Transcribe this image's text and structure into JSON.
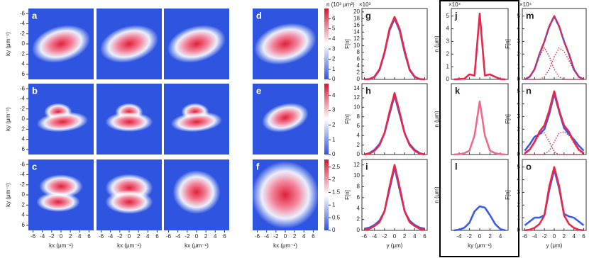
{
  "heatmaps": {
    "panels": [
      "a",
      "b",
      "c",
      "d",
      "e",
      "f"
    ],
    "lim": [
      -7,
      7
    ],
    "ticks": [
      -6,
      -4,
      -2,
      0,
      2,
      4,
      6
    ],
    "x_label": "kx (μm⁻¹)",
    "y_label": "ky (μm⁻¹)",
    "colorbar_label": "n (10³ μm²)",
    "colorbars": [
      {
        "lim": [
          0,
          7
        ],
        "ticks": [
          0,
          1,
          2,
          3,
          4,
          5,
          6
        ]
      },
      {
        "lim": [
          0,
          4.8
        ],
        "ticks": [
          0,
          1,
          2,
          3,
          4
        ]
      },
      {
        "lim": [
          0,
          2.8
        ],
        "ticks": [
          0,
          0.5,
          1,
          1.5,
          2,
          2.5
        ]
      }
    ]
  },
  "profiles": {
    "columns": [
      {
        "multiplier": "×10³",
        "x_label": "y (μm)",
        "y_label": "F[n]",
        "xlim": [
          -6.5,
          6.5
        ],
        "xticks": [
          -6,
          -4,
          -2,
          0,
          2,
          4,
          6
        ],
        "x": [
          -6,
          -5,
          -4,
          -3,
          -2,
          -1,
          0,
          1,
          2,
          3,
          4,
          5,
          6
        ],
        "panels": [
          {
            "label": "g",
            "ylim": [
              0,
              21
            ],
            "yticks": [
              0,
              2,
              4,
              6,
              8,
              10,
              12,
              14,
              16,
              18,
              20
            ],
            "series": [
              {
                "color": "#3a5ce6",
                "values": [
                  0,
                  0.1,
                  0.7,
                  2.8,
                  7.8,
                  14.5,
                  18,
                  14.5,
                  8,
                  2.8,
                  0.7,
                  0.1,
                  0
                ]
              },
              {
                "color": "#e8274b",
                "values": [
                  0,
                  0.1,
                  0.8,
                  3,
                  8,
                  15,
                  18.5,
                  15,
                  8.5,
                  3,
                  0.8,
                  0.1,
                  0
                ]
              }
            ]
          },
          {
            "label": "h",
            "ylim": [
              0,
              15
            ],
            "yticks": [
              0,
              2,
              4,
              6,
              8,
              10,
              12,
              14
            ],
            "series": [
              {
                "color": "#3a5ce6",
                "values": [
                  0,
                  0.3,
                  1,
                  2.2,
                  4.5,
                  8.5,
                  12.5,
                  8.5,
                  4.5,
                  2.2,
                  1,
                  0.3,
                  0
                ]
              },
              {
                "color": "#e8274b",
                "values": [
                  0,
                  0.2,
                  0.8,
                  2,
                  4.5,
                  9,
                  13,
                  9,
                  4.5,
                  2,
                  0.8,
                  0.2,
                  0
                ]
              }
            ]
          },
          {
            "label": "i",
            "ylim": [
              0,
              13
            ],
            "yticks": [
              0,
              2,
              4,
              6,
              8,
              10,
              12
            ],
            "series": [
              {
                "color": "#3a5ce6",
                "values": [
                  0.3,
                  0.5,
                  1,
                  1.8,
                  3.5,
                  7.5,
                  11.5,
                  7.5,
                  3.5,
                  1.8,
                  1,
                  0.5,
                  0.3
                ]
              },
              {
                "color": "#e8274b",
                "values": [
                  0.1,
                  0.3,
                  0.8,
                  1.5,
                  3.5,
                  8,
                  12,
                  8,
                  3.5,
                  1.5,
                  0.8,
                  0.3,
                  0.1
                ]
              }
            ]
          }
        ]
      },
      {
        "multiplier": "×10⁴",
        "x_label": "ky (μm⁻¹)",
        "y_label": "n (μm)",
        "xlim": [
          -5.5,
          5.5
        ],
        "xticks": [
          -4,
          -2,
          0,
          2,
          4
        ],
        "x": [
          -5,
          -4,
          -3,
          -2,
          -1,
          0,
          1,
          2,
          3,
          4,
          5
        ],
        "panels": [
          {
            "label": "j",
            "ylim": [
              0,
              5.6
            ],
            "yticks": [
              0,
              1,
              2,
              3,
              4,
              5
            ],
            "series": [
              {
                "color": "#e8274b",
                "values": [
                  0,
                  0.02,
                  0.05,
                  0.4,
                  0.3,
                  5.2,
                  0.3,
                  0.4,
                  0.2,
                  0.02,
                  0
                ]
              }
            ]
          },
          {
            "label": "k",
            "ylim": [
              0,
              5.6
            ],
            "series": [
              {
                "color": "#f06a8a",
                "values": [
                  0,
                  0.02,
                  0.1,
                  0.3,
                  1.5,
                  4.2,
                  1.5,
                  0.3,
                  0.1,
                  0.02,
                  0
                ]
              }
            ]
          },
          {
            "label": "l",
            "ylim": [
              0,
              5.6
            ],
            "series": [
              {
                "color": "#3a5ce6",
                "values": [
                  0,
                  0.05,
                  0.2,
                  0.6,
                  1.5,
                  1.9,
                  1.8,
                  1.2,
                  0.5,
                  0.1,
                  0
                ]
              }
            ]
          }
        ]
      },
      {
        "multiplier": "×10⁴",
        "x_label": "y (μm)",
        "y_label": "F[n]",
        "xlim": [
          -6.5,
          6.5
        ],
        "xticks": [
          -6,
          -4,
          -2,
          0,
          2,
          4,
          6
        ],
        "x": [
          -6,
          -5,
          -4,
          -3,
          -2,
          -1,
          0,
          1,
          2,
          3,
          4,
          5,
          6
        ],
        "panels": [
          {
            "label": "m",
            "ylim": [
              0,
              5.6
            ],
            "yticks": [
              0,
              1,
              2,
              3,
              4,
              5
            ],
            "series": [
              {
                "color": "#e8274b",
                "style": "dotted",
                "values": [
                  0,
                  0.2,
                  0.8,
                  1.8,
                  2.5,
                  1.8,
                  0.8,
                  0.2,
                  0,
                  0,
                  0,
                  0,
                  0
                ]
              },
              {
                "color": "#e8274b",
                "style": "dotted",
                "values": [
                  0,
                  0,
                  0,
                  0,
                  0.2,
                  0.8,
                  1.8,
                  2.5,
                  2.2,
                  1.5,
                  0.7,
                  0.2,
                  0
                ]
              },
              {
                "color": "#e8274b",
                "values": [
                  0,
                  0.2,
                  0.8,
                  2,
                  3,
                  4.2,
                  5,
                  4.2,
                  3,
                  2,
                  0.8,
                  0.2,
                  0
                ]
              },
              {
                "color": "#3a5ce6",
                "style": "dashed",
                "values": [
                  0,
                  0.2,
                  0.8,
                  2,
                  3,
                  4.1,
                  4.9,
                  4.1,
                  3,
                  2,
                  0.8,
                  0.2,
                  0
                ]
              }
            ]
          },
          {
            "label": "n",
            "ylim": [
              0,
              5.6
            ],
            "yticks": [
              0,
              1,
              2,
              3,
              4,
              5
            ],
            "series": [
              {
                "color": "#e8274b",
                "style": "dotted",
                "values": [
                  0,
                  0.3,
                  0.9,
                  1.6,
                  1.7,
                  1,
                  0.2,
                  0,
                  0,
                  0,
                  0,
                  0,
                  0
                ]
              },
              {
                "color": "#e8274b",
                "style": "dotted",
                "values": [
                  0,
                  0,
                  0,
                  0,
                  0,
                  0.3,
                  1,
                  1.7,
                  1.8,
                  1.5,
                  0.9,
                  0.3,
                  0
                ]
              },
              {
                "color": "#3a5ce6",
                "values": [
                  0.3,
                  0.8,
                  1.4,
                  1.6,
                  2,
                  3.2,
                  4.8,
                  3.4,
                  2.1,
                  1.6,
                  1.2,
                  0.7,
                  0.3
                ]
              },
              {
                "color": "#e8274b",
                "values": [
                  0.1,
                  0.4,
                  1,
                  1.8,
                  2.3,
                  3.5,
                  5,
                  3.5,
                  2.3,
                  1.8,
                  1,
                  0.4,
                  0.1
                ]
              }
            ]
          },
          {
            "label": "o",
            "ylim": [
              0,
              5.6
            ],
            "yticks": [
              0,
              1,
              2,
              3,
              4,
              5
            ],
            "series": [
              {
                "color": "#3a5ce6",
                "values": [
                  0.4,
                  0.7,
                  1,
                  1,
                  1.2,
                  3.2,
                  4.8,
                  3.3,
                  1.3,
                  1.1,
                  1,
                  0.7,
                  0.4
                ]
              },
              {
                "color": "#e8274b",
                "values": [
                  0,
                  0.05,
                  0.2,
                  0.5,
                  1.2,
                  3.5,
                  5,
                  3.5,
                  1.2,
                  0.5,
                  0.2,
                  0.05,
                  0
                ]
              }
            ]
          }
        ]
      }
    ]
  }
}
